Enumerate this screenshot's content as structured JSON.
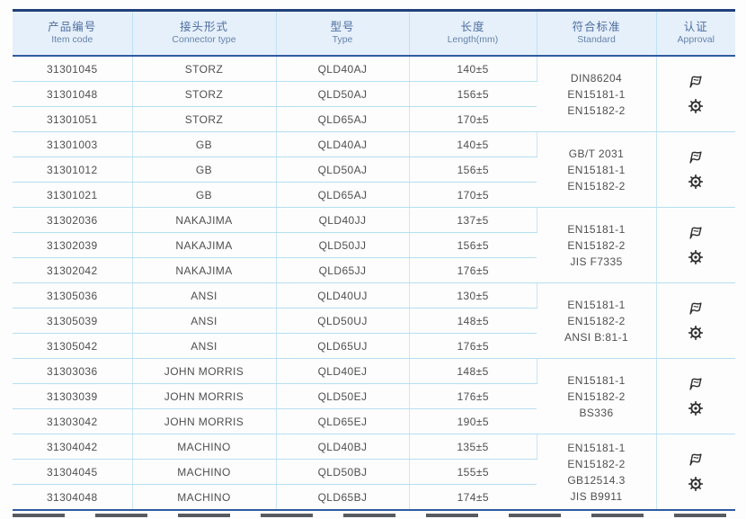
{
  "table": {
    "columns": [
      {
        "cn": "产品编号",
        "en": "Item code"
      },
      {
        "cn": "接头形式",
        "en": "Connector type"
      },
      {
        "cn": "型号",
        "en": "Type"
      },
      {
        "cn": "长度",
        "en": "Length(mm)"
      },
      {
        "cn": "符合标准",
        "en": "Standard"
      },
      {
        "cn": "认证",
        "en": "Approval"
      }
    ],
    "groups": [
      {
        "rows": [
          {
            "item_code": "31301045",
            "connector_type": "STORZ",
            "type": "QLD40AJ",
            "length": "140±5"
          },
          {
            "item_code": "31301048",
            "connector_type": "STORZ",
            "type": "QLD50AJ",
            "length": "156±5"
          },
          {
            "item_code": "31301051",
            "connector_type": "STORZ",
            "type": "QLD65AJ",
            "length": "170±5"
          }
        ],
        "standards": [
          "DIN86204",
          "EN15181-1",
          "EN15182-2"
        ],
        "approval_icons": [
          "certification-flag-icon",
          "wheelmark-icon"
        ]
      },
      {
        "rows": [
          {
            "item_code": "31301003",
            "connector_type": "GB",
            "type": "QLD40AJ",
            "length": "140±5"
          },
          {
            "item_code": "31301012",
            "connector_type": "GB",
            "type": "QLD50AJ",
            "length": "156±5"
          },
          {
            "item_code": "31301021",
            "connector_type": "GB",
            "type": "QLD65AJ",
            "length": "170±5"
          }
        ],
        "standards": [
          "GB/T 2031",
          "EN15181-1",
          "EN15182-2"
        ],
        "approval_icons": [
          "certification-flag-icon",
          "wheelmark-icon"
        ]
      },
      {
        "rows": [
          {
            "item_code": "31302036",
            "connector_type": "NAKAJIMA",
            "type": "QLD40JJ",
            "length": "137±5"
          },
          {
            "item_code": "31302039",
            "connector_type": "NAKAJIMA",
            "type": "QLD50JJ",
            "length": "156±5"
          },
          {
            "item_code": "31302042",
            "connector_type": "NAKAJIMA",
            "type": "QLD65JJ",
            "length": "176±5"
          }
        ],
        "standards": [
          "EN15181-1",
          "EN15182-2",
          "JIS F7335"
        ],
        "approval_icons": [
          "certification-flag-icon",
          "wheelmark-icon"
        ]
      },
      {
        "rows": [
          {
            "item_code": "31305036",
            "connector_type": "ANSI",
            "type": "QLD40UJ",
            "length": "130±5"
          },
          {
            "item_code": "31305039",
            "connector_type": "ANSI",
            "type": "QLD50UJ",
            "length": "148±5"
          },
          {
            "item_code": "31305042",
            "connector_type": "ANSI",
            "type": "QLD65UJ",
            "length": "176±5"
          }
        ],
        "standards": [
          "EN15181-1",
          "EN15182-2",
          "ANSI B:81-1"
        ],
        "approval_icons": [
          "certification-flag-icon",
          "wheelmark-icon"
        ]
      },
      {
        "rows": [
          {
            "item_code": "31303036",
            "connector_type": "JOHN MORRIS",
            "type": "QLD40EJ",
            "length": "148±5"
          },
          {
            "item_code": "31303039",
            "connector_type": "JOHN MORRIS",
            "type": "QLD50EJ",
            "length": "176±5"
          },
          {
            "item_code": "31303042",
            "connector_type": "JOHN MORRIS",
            "type": "QLD65EJ",
            "length": "190±5"
          }
        ],
        "standards": [
          "EN15181-1",
          "EN15182-2",
          "BS336"
        ],
        "approval_icons": [
          "certification-flag-icon",
          "wheelmark-icon"
        ]
      },
      {
        "rows": [
          {
            "item_code": "31304042",
            "connector_type": "MACHINO",
            "type": "QLD40BJ",
            "length": "135±5"
          },
          {
            "item_code": "31304045",
            "connector_type": "MACHINO",
            "type": "QLD50BJ",
            "length": "155±5"
          },
          {
            "item_code": "31304048",
            "connector_type": "MACHINO",
            "type": "QLD65BJ",
            "length": "174±5"
          }
        ],
        "standards": [
          "EN15181-1",
          "EN15182-2",
          "GB12514.3",
          "JIS B9911"
        ],
        "approval_icons": [
          "certification-flag-icon",
          "wheelmark-icon"
        ]
      }
    ],
    "colors": {
      "top_border": "#21407b",
      "header_bg": "#e6f0fb",
      "header_text": "#4d6e9f",
      "rule_blue": "#2f5aa0",
      "grid_line": "#b5dff1",
      "body_text": "#4f4f4f",
      "icon": "#2d2d2d"
    }
  }
}
